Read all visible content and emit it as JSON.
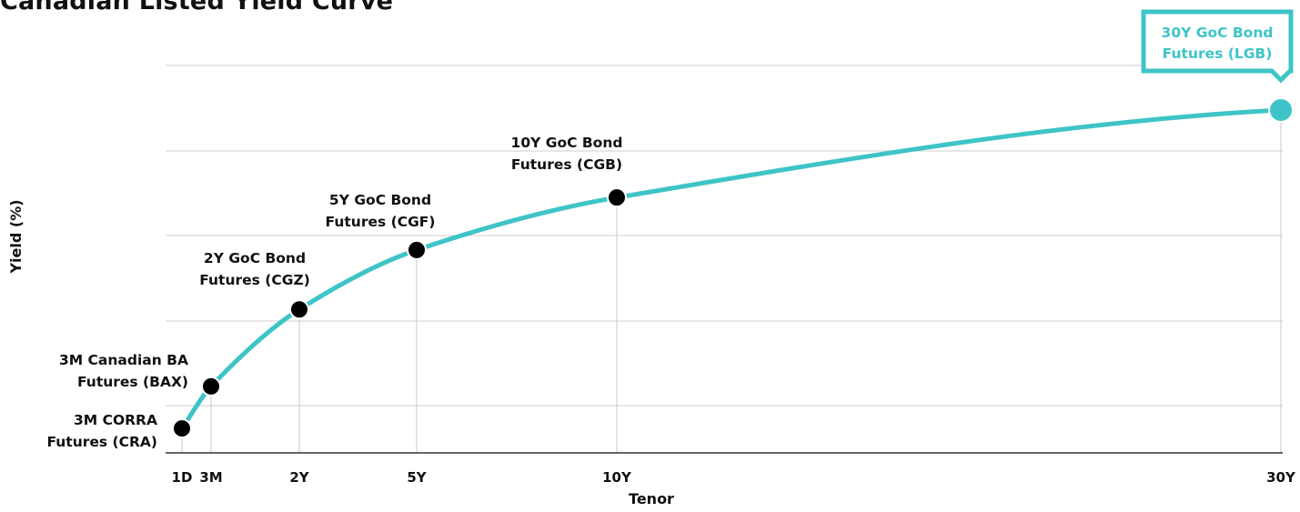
{
  "chart_data": {
    "type": "line",
    "title": "Canadian Listed Yield Curve",
    "xlabel": "Tenor",
    "ylabel": "Yield (%)",
    "x_ticks": [
      "1D",
      "3M",
      "2Y",
      "5Y",
      "10Y",
      "30Y"
    ],
    "y_tick_labels_shown": false,
    "grid": "horizontal",
    "points": [
      {
        "tenor": "1D",
        "label": [
          "3M CORRA",
          "Futures (CRA)"
        ]
      },
      {
        "tenor": "3M",
        "label": [
          "3M Canadian BA",
          "Futures (BAX)"
        ]
      },
      {
        "tenor": "2Y",
        "label": [
          "2Y GoC Bond",
          "Futures (CGZ)"
        ]
      },
      {
        "tenor": "5Y",
        "label": [
          "5Y GoC Bond",
          "Futures (CGF)"
        ]
      },
      {
        "tenor": "10Y",
        "label": [
          "10Y GoC Bond",
          "Futures (CGB)"
        ]
      },
      {
        "tenor": "30Y",
        "label": [
          "30Y GoC Bond",
          "Futures (LGB)"
        ],
        "highlight": true
      }
    ],
    "relative_yield_level": [
      0.07,
      0.19,
      0.41,
      0.58,
      0.73,
      0.98
    ],
    "colors": {
      "curve": "#3ec4c7",
      "points": "#000000",
      "highlight": "#3ec4c7"
    }
  }
}
